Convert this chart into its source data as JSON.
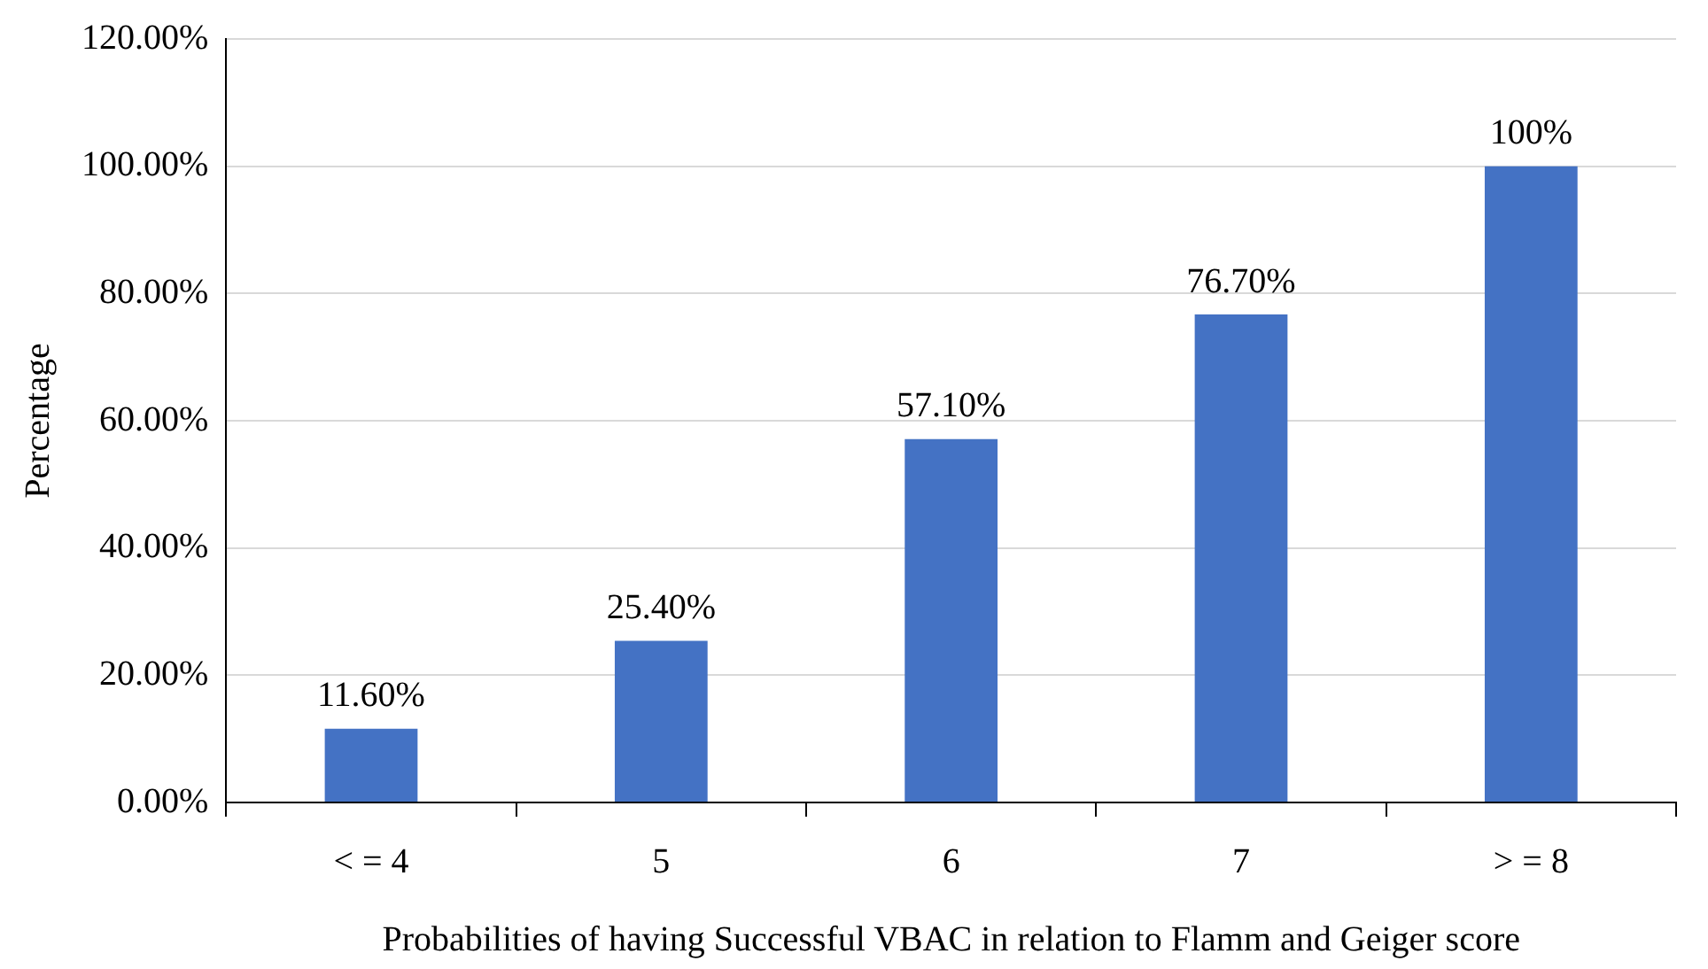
{
  "chart_data": {
    "type": "bar",
    "xlabel": "Probabilities of having Successful VBAC in relation to Flamm and Geiger score",
    "ylabel": "Percentage",
    "categories": [
      "< = 4",
      "5",
      "6",
      "7",
      "> = 8"
    ],
    "values": [
      11.6,
      25.4,
      57.1,
      76.7,
      100
    ],
    "value_labels": [
      "11.60%",
      "25.40%",
      "57.10%",
      "76.70%",
      "100%"
    ],
    "color": "#4472c4",
    "ylim": [
      0,
      120
    ],
    "yticks": [
      {
        "value": 0,
        "label": "0.00%"
      },
      {
        "value": 20,
        "label": "20.00%"
      },
      {
        "value": 40,
        "label": "40.00%"
      },
      {
        "value": 60,
        "label": "60.00%"
      },
      {
        "value": 80,
        "label": "80.00%"
      },
      {
        "value": 100,
        "label": "100.00%"
      },
      {
        "value": 120,
        "label": "120.00%"
      }
    ],
    "grid": "y",
    "legend": false
  }
}
